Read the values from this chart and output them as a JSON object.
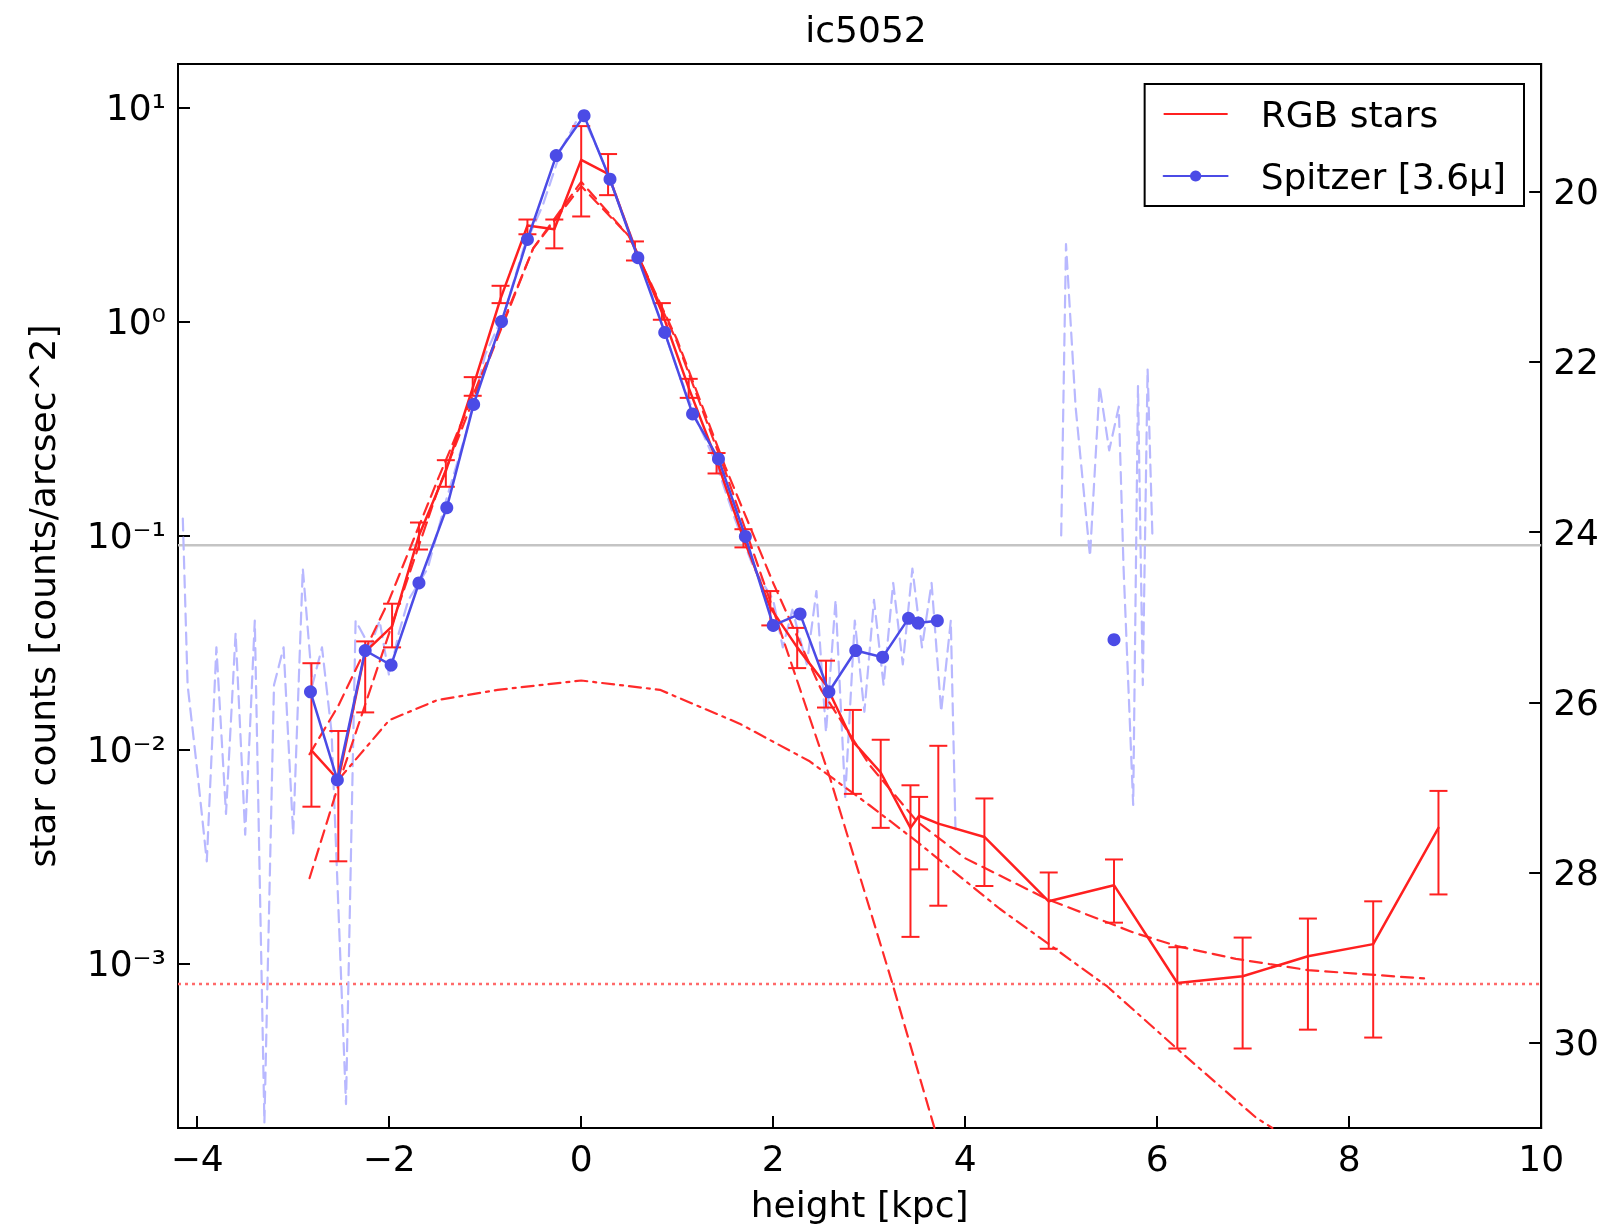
{
  "chart_data": {
    "type": "line",
    "title": "ic5052",
    "xlabel": "height [kpc]",
    "ylabel": "star counts [counts/arcsec^2]",
    "xlim": [
      -4.2,
      10
    ],
    "xticks": [
      {
        "value": -4,
        "label": "−4"
      },
      {
        "value": -2,
        "label": "−2"
      },
      0,
      2,
      4,
      6,
      8,
      10
    ],
    "ylim": [
      0.00017,
      16
    ],
    "yticks": [
      {
        "value": 10,
        "label": "10¹"
      },
      {
        "value": 1,
        "label": "10⁰"
      },
      {
        "value": 0.1,
        "label": "10⁻¹"
      },
      {
        "value": 0.01,
        "label": "10⁻²"
      },
      {
        "value": 0.001,
        "label": "10⁻³"
      }
    ],
    "y2lim": [
      31.0,
      18.5
    ],
    "y2ticks": [
      20,
      22,
      24,
      26,
      28,
      30
    ],
    "log": "y",
    "grid": false,
    "legend": "top right",
    "ref_lines": [
      {
        "axis": "y",
        "value": 0.09,
        "color": "#c4c4c4",
        "line_style": "solid"
      },
      {
        "axis": "y",
        "value": 0.0008,
        "color": "#ff6a6a",
        "line_style": "dotted"
      }
    ],
    "series": [
      {
        "color": "#b8b8ff",
        "line_style": "dashed",
        "marker": "none",
        "x": [
          -4.15,
          -4.1,
          -4.0,
          -3.9,
          -3.8,
          -3.7,
          -3.6,
          -3.5,
          -3.4,
          -3.3,
          -3.2,
          -3.1,
          -3.0,
          -2.9,
          -2.8,
          -2.7,
          -2.6,
          -2.45,
          -2.35,
          -2.2,
          -2.1,
          -2.0,
          -1.9,
          -1.8,
          -1.6,
          -1.4,
          -1.2,
          -1.0,
          -0.8,
          -0.6,
          -0.4,
          -0.2,
          0,
          0.2,
          0.4,
          0.6,
          0.8,
          1.0,
          1.2,
          1.4,
          1.6,
          1.8,
          2.0,
          2.1,
          2.2,
          2.35,
          2.45,
          2.55,
          2.65,
          2.75,
          2.85,
          2.95,
          3.05,
          3.15,
          3.25,
          3.35,
          3.45,
          3.55,
          3.65,
          3.75,
          3.85,
          3.9,
          4.4,
          5.0,
          5.05,
          5.15,
          5.3,
          5.4,
          5.5,
          5.6,
          5.65,
          5.75,
          5.8,
          5.85,
          5.9,
          5.95
        ],
        "values": [
          0.12,
          0.02,
          0.008,
          0.003,
          0.03,
          0.005,
          0.035,
          0.004,
          0.04,
          0.00018,
          0.02,
          0.03,
          0.004,
          0.07,
          0.02,
          0.03,
          0.012,
          0.00022,
          0.04,
          0.03,
          0.04,
          0.022,
          0.035,
          0.05,
          0.07,
          0.15,
          0.3,
          0.7,
          1.1,
          2.2,
          3.5,
          6.5,
          9.5,
          6.0,
          3.5,
          2.0,
          1.1,
          0.6,
          0.35,
          0.22,
          0.12,
          0.07,
          0.05,
          0.03,
          0.045,
          0.025,
          0.055,
          0.012,
          0.05,
          0.006,
          0.04,
          0.015,
          0.05,
          0.02,
          0.06,
          0.025,
          0.07,
          0.03,
          0.06,
          0.015,
          0.04,
          0.004,
          null,
          0.1,
          2.3,
          0.4,
          0.08,
          0.5,
          0.25,
          0.4,
          0.07,
          0.0055,
          0.5,
          0.02,
          0.6,
          0.1
        ]
      },
      {
        "color": "#ff2a2a",
        "line_style": "dashed",
        "marker": "none",
        "x": [
          -2.83,
          -2.5,
          -2.0,
          -1.5,
          -1.0,
          -0.5,
          0,
          0.5,
          1.0,
          1.5,
          2.0,
          2.59,
          2.96,
          3.24,
          3.68
        ],
        "values": [
          0.0025,
          0.0075,
          0.035,
          0.16,
          0.6,
          2.2,
          4.3,
          2.5,
          0.8,
          0.2,
          0.045,
          0.0074,
          0.0021,
          0.00081,
          0.00017
        ]
      },
      {
        "color": "#ff2a2a",
        "line_style": "dashdot",
        "marker": "none",
        "x": [
          -2.53,
          -2.0,
          -1.5,
          -0.87,
          0,
          0.82,
          1.65,
          2.38,
          3.0,
          3.5,
          4.36,
          5.48,
          6.26,
          7.03,
          7.2
        ],
        "values": [
          0.0072,
          0.0137,
          0.017,
          0.019,
          0.021,
          0.019,
          0.0132,
          0.0088,
          0.0055,
          0.0037,
          0.0018,
          0.00078,
          0.00038,
          0.00019,
          0.00017
        ]
      },
      {
        "color": "#ff2a2a",
        "line_style": "dashed",
        "marker": "none",
        "x": [
          -2.83,
          -2.53,
          -2.0,
          -1.5,
          -1.0,
          -0.5,
          0,
          0.5,
          1.0,
          1.5,
          2.0,
          2.5,
          3.0,
          3.5,
          4.0,
          4.85,
          5.76,
          6.22,
          6.82,
          7.57,
          8.78
        ],
        "values": [
          0.0095,
          0.016,
          0.05,
          0.18,
          0.62,
          2.2,
          4.5,
          2.5,
          0.82,
          0.21,
          0.06,
          0.019,
          0.0085,
          0.0046,
          0.0031,
          0.002,
          0.00139,
          0.0012,
          0.00105,
          0.00093,
          0.00085
        ]
      },
      {
        "name": "RGB stars",
        "color": "#ff2020",
        "line_style": "solid",
        "marker": "none",
        "x": [
          -2.81,
          -2.53,
          -2.25,
          -1.97,
          -1.69,
          -1.41,
          -1.13,
          -0.84,
          -0.56,
          -0.28,
          0.0,
          0.28,
          0.56,
          0.84,
          1.12,
          1.41,
          1.69,
          1.97,
          2.25,
          2.55,
          2.83,
          3.12,
          3.43,
          3.52,
          3.72,
          4.2,
          4.87,
          5.55,
          6.21,
          6.89,
          7.57,
          8.25,
          8.93
        ],
        "values": [
          0.0099,
          0.0072,
          0.0286,
          0.0376,
          0.1,
          0.2,
          0.49,
          1.28,
          2.81,
          2.7,
          5.7,
          4.9,
          2.21,
          1.11,
          0.49,
          0.225,
          0.097,
          0.046,
          0.03,
          0.02,
          0.0109,
          0.0078,
          0.0043,
          0.0049,
          0.0045,
          0.0039,
          0.00195,
          0.00232,
          0.00081,
          0.00087,
          0.00108,
          0.00123,
          0.0043
        ],
        "errors": [
          [
            0.0054,
            0.0253
          ],
          [
            0.003,
            0.0122
          ],
          [
            0.0149,
            0.032
          ],
          [
            0.03,
            0.048
          ],
          [
            0.086,
            0.115
          ],
          [
            0.169,
            0.225
          ],
          [
            0.45,
            0.55
          ],
          [
            1.22,
            1.47
          ],
          [
            2.56,
            3.0
          ],
          [
            2.2,
            3.0
          ],
          [
            3.1,
            8.2
          ],
          [
            3.9,
            6.07
          ],
          [
            1.93,
            2.37
          ],
          [
            1.02,
            1.22
          ],
          [
            0.44,
            0.54
          ],
          [
            0.195,
            0.243
          ],
          [
            0.088,
            0.107
          ],
          [
            0.038,
            0.055
          ],
          [
            0.024,
            0.037
          ],
          [
            0.0157,
            0.026
          ],
          [
            0.0062,
            0.0153
          ],
          [
            0.0043,
            0.0111
          ],
          [
            0.00133,
            0.0068
          ],
          [
            0.00275,
            0.006
          ],
          [
            0.00186,
            0.0104
          ],
          [
            0.0023,
            0.0059
          ],
          [
            0.00117,
            0.00266
          ],
          [
            0.00155,
            0.00306
          ],
          [
            0.0004,
            0.00119
          ],
          [
            0.0004,
            0.00132
          ],
          [
            0.00049,
            0.00162
          ],
          [
            0.00045,
            0.00195
          ],
          [
            0.0021,
            0.0064
          ]
        ]
      },
      {
        "name": "Spitzer [3.6μ]",
        "color": "#4b4be6",
        "line_style": "solid",
        "marker": "circle",
        "x": [
          -2.82,
          -2.54,
          -2.25,
          -1.98,
          -1.69,
          -1.4,
          -1.12,
          -0.83,
          -0.56,
          -0.26,
          0.03,
          0.3,
          0.59,
          0.87,
          1.16,
          1.43,
          1.71,
          2.0,
          2.28,
          2.58,
          2.86,
          3.14,
          3.41,
          3.51,
          3.71,
          4.6,
          5.55
        ],
        "values": [
          0.0186,
          0.0072,
          0.029,
          0.0248,
          0.06,
          0.135,
          0.41,
          1.0,
          2.42,
          5.97,
          9.17,
          4.63,
          1.99,
          0.89,
          0.37,
          0.228,
          0.099,
          0.038,
          0.043,
          0.0186,
          0.029,
          0.027,
          0.041,
          0.039,
          0.04,
          null,
          0.0326
        ]
      }
    ]
  }
}
